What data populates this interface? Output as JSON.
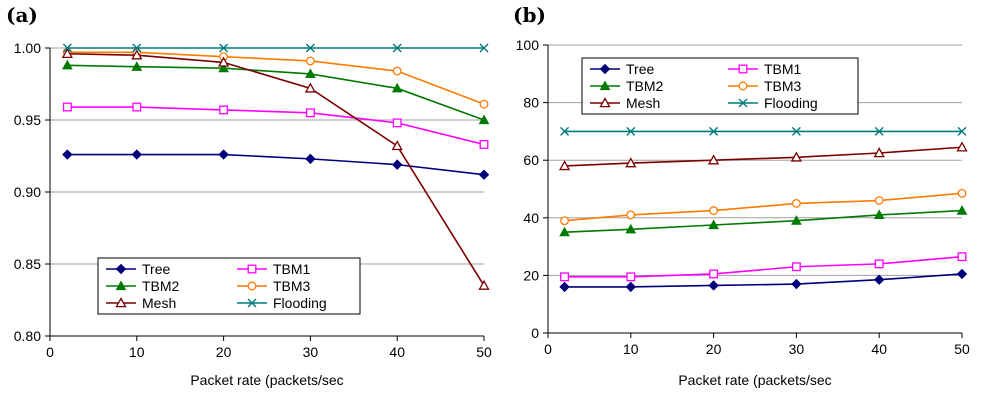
{
  "chart_data": [
    {
      "type": "line",
      "panel_label": "(a)",
      "xlabel": "Packet rate (packets/sec",
      "ylabel": "",
      "xlim": [
        0,
        50
      ],
      "ylim": [
        0.8,
        1.0
      ],
      "xticks": [
        0,
        10,
        20,
        30,
        40,
        50
      ],
      "yticks": [
        0.8,
        0.85,
        0.9,
        0.95,
        1.0
      ],
      "ytick_labels": [
        "0.80",
        "0.85",
        "0.90",
        "0.95",
        "1.00"
      ],
      "grid": "horizontal",
      "legend_placement": "bottom-center",
      "x": [
        2,
        10,
        20,
        30,
        40,
        50
      ],
      "series": [
        {
          "name": "Tree",
          "color": "#00007a",
          "marker": "diamond",
          "values": [
            0.926,
            0.926,
            0.926,
            0.923,
            0.919,
            0.912
          ]
        },
        {
          "name": "TBM1",
          "color": "#ff00ff",
          "marker": "square-open",
          "values": [
            0.959,
            0.959,
            0.957,
            0.955,
            0.948,
            0.933
          ]
        },
        {
          "name": "TBM2",
          "color": "#007a00",
          "marker": "triangle",
          "values": [
            0.988,
            0.987,
            0.986,
            0.982,
            0.972,
            0.95
          ]
        },
        {
          "name": "TBM3",
          "color": "#ff7a00",
          "marker": "circle-open",
          "values": [
            0.997,
            0.997,
            0.994,
            0.991,
            0.984,
            0.961
          ]
        },
        {
          "name": "Mesh",
          "color": "#7a0000",
          "marker": "triangle-open",
          "values": [
            0.996,
            0.995,
            0.99,
            0.972,
            0.932,
            0.835
          ]
        },
        {
          "name": "Flooding",
          "color": "#007a7a",
          "marker": "x",
          "values": [
            1.0,
            1.0,
            1.0,
            1.0,
            1.0,
            1.0
          ]
        }
      ]
    },
    {
      "type": "line",
      "panel_label": "(b)",
      "xlabel": "Packet rate (packets/sec",
      "ylabel": "",
      "xlim": [
        0,
        50
      ],
      "ylim": [
        0,
        100
      ],
      "xticks": [
        0,
        10,
        20,
        30,
        40,
        50
      ],
      "yticks": [
        0,
        20,
        40,
        60,
        80,
        100
      ],
      "ytick_labels": [
        "0",
        "20",
        "40",
        "60",
        "80",
        "100"
      ],
      "grid": "horizontal",
      "legend_placement": "top-left",
      "x": [
        2,
        10,
        20,
        30,
        40,
        50
      ],
      "series": [
        {
          "name": "Tree",
          "color": "#00007a",
          "marker": "diamond",
          "values": [
            16,
            16,
            16.5,
            17,
            18.5,
            20.5
          ]
        },
        {
          "name": "TBM1",
          "color": "#ff00ff",
          "marker": "square-open",
          "values": [
            19.5,
            19.5,
            20.5,
            23,
            24,
            26.5
          ]
        },
        {
          "name": "TBM2",
          "color": "#007a00",
          "marker": "triangle",
          "values": [
            35,
            36,
            37.5,
            39,
            41,
            42.5
          ]
        },
        {
          "name": "TBM3",
          "color": "#ff7a00",
          "marker": "circle-open",
          "values": [
            39,
            41,
            42.5,
            45,
            46,
            48.5
          ]
        },
        {
          "name": "Mesh",
          "color": "#7a0000",
          "marker": "triangle-open",
          "values": [
            58,
            59,
            60,
            61,
            62.5,
            64.5
          ]
        },
        {
          "name": "Flooding",
          "color": "#007a7a",
          "marker": "x",
          "values": [
            70,
            70,
            70,
            70,
            70,
            70
          ]
        }
      ]
    }
  ]
}
